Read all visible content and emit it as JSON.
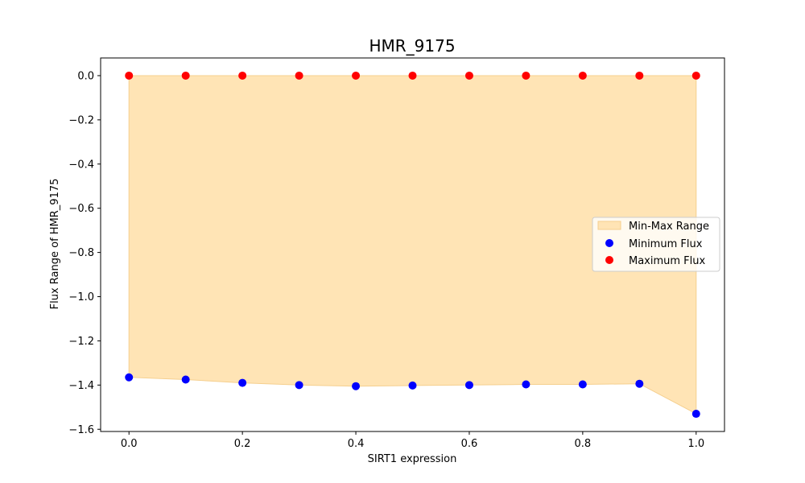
{
  "chart_data": {
    "type": "scatter",
    "title": "HMR_9175",
    "xlabel": "SIRT1 expression",
    "ylabel": "Flux Range of HMR_9175",
    "xlim": [
      -0.05,
      1.05
    ],
    "ylim": [
      -1.61,
      0.08
    ],
    "xticks": [
      0.0,
      0.2,
      0.4,
      0.6,
      0.8,
      1.0
    ],
    "xtick_labels": [
      "0.0",
      "0.2",
      "0.4",
      "0.6",
      "0.8",
      "1.0"
    ],
    "yticks": [
      0.0,
      -0.2,
      -0.4,
      -0.6,
      -0.8,
      -1.0,
      -1.2,
      -1.4,
      -1.6
    ],
    "ytick_labels": [
      "0.0",
      "−0.2",
      "−0.4",
      "−0.6",
      "−0.8",
      "−1.0",
      "−1.2",
      "−1.4",
      "−1.6"
    ],
    "x": [
      0.0,
      0.1,
      0.2,
      0.3,
      0.4,
      0.5,
      0.6,
      0.7,
      0.8,
      0.9,
      1.0
    ],
    "grid": false,
    "legend_position": "center-right",
    "fill": {
      "name": "Min-Max Range",
      "color": "#ffe4b5",
      "edge_color": "#f5cf8e"
    },
    "series": [
      {
        "name": "Minimum Flux",
        "color": "#0000ff",
        "values": [
          -1.365,
          -1.375,
          -1.39,
          -1.4,
          -1.405,
          -1.402,
          -1.4,
          -1.397,
          -1.397,
          -1.394,
          -1.53
        ]
      },
      {
        "name": "Maximum Flux",
        "color": "#ff0000",
        "values": [
          0.0,
          0.0,
          0.0,
          0.0,
          0.0,
          0.0,
          0.0,
          0.0,
          0.0,
          0.0,
          0.0
        ]
      }
    ]
  }
}
